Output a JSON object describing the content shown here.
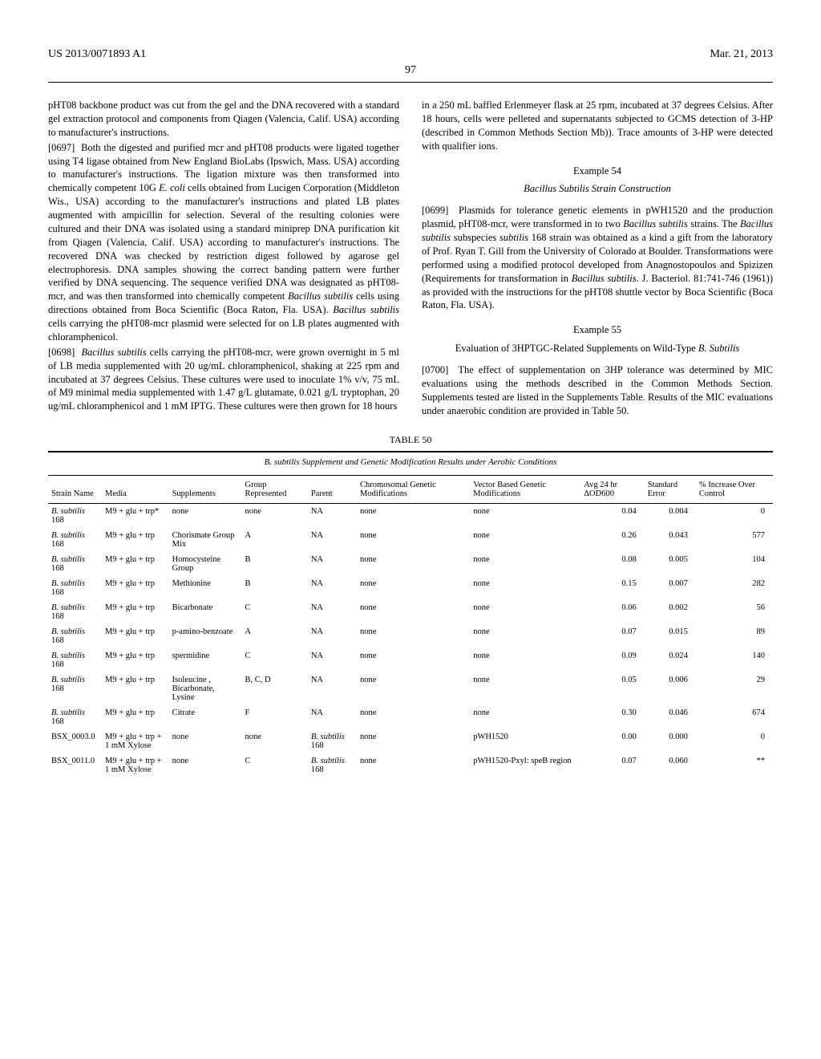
{
  "header": {
    "pub_number": "US 2013/0071893 A1",
    "pub_date": "Mar. 21, 2013",
    "page_number": "97"
  },
  "left_col": {
    "p1": "pHT08 backbone product was cut from the gel and the DNA recovered with a standard gel extraction protocol and components from Qiagen (Valencia, Calif. USA) according to manufacturer's instructions.",
    "p2_num": "[0697]",
    "p2": "Both the digested and purified mcr and pHT08 products were ligated together using T4 ligase obtained from New England BioLabs (Ipswich, Mass. USA) according to manufacturer's instructions. The ligation mixture was then transformed into chemically competent 10G E. coli cells obtained from Lucigen Corporation (Middleton Wis., USA) according to the manufacturer's instructions and plated LB plates augmented with ampicillin for selection. Several of the resulting colonies were cultured and their DNA was isolated using a standard miniprep DNA purification kit from Qiagen (Valencia, Calif. USA) according to manufacturer's instructions. The recovered DNA was checked by restriction digest followed by agarose gel electrophoresis. DNA samples showing the correct banding pattern were further verified by DNA sequencing. The sequence verified DNA was designated as pHT08-mcr, and was then transformed into chemically competent Bacillus subtilis cells using directions obtained from Boca Scientific (Boca Raton, Fla. USA). Bacillus subtilis cells carrying the pHT08-mcr plasmid were selected for on LB plates augmented with chloramphenicol.",
    "p3_num": "[0698]",
    "p3": "Bacillus subtilis cells carrying the pHT08-mcr, were grown overnight in 5 ml of LB media supplemented with 20 ug/mL chloramphenicol, shaking at 225 rpm and incubated at 37 degrees Celsius. These cultures were used to inoculate 1% v/v, 75 mL of M9 minimal media supplemented with 1.47 g/L glutamate, 0.021 g/L tryptophan, 20 ug/mL chloramphenicol and 1 mM IPTG. These cultures were then grown for 18 hours"
  },
  "right_col": {
    "p1": "in a 250 mL baffled Erlenmeyer flask at 25 rpm, incubated at 37 degrees Celsius. After 18 hours, cells were pelleted and supernatants subjected to GCMS detection of 3-HP (described in Common Methods Section Mb)). Trace amounts of 3-HP were detected with qualifier ions.",
    "ex54_label": "Example 54",
    "ex54_title": "Bacillus Subtilis Strain Construction",
    "p2_num": "[0699]",
    "p2": "Plasmids for tolerance genetic elements in pWH1520 and the production plasmid, pHT08-mcr, were transformed in to two Bacillus subtilis strains. The Bacillus subtilis subspecies subtilis 168 strain was obtained as a kind a gift from the laboratory of Prof. Ryan T. Gill from the University of Colorado at Boulder. Transformations were performed using a modified protocol developed from Anagnostopoulos and Spizizen (Requirements for transformation in Bacillus subtilis. J. Bacteriol. 81:741-746 (1961)) as provided with the instructions for the pHT08 shuttle vector by Boca Scientific (Boca Raton, Fla. USA).",
    "ex55_label": "Example 55",
    "ex55_title": "Evaluation of 3HPTGC-Related Supplements on Wild-Type B. Subtilis",
    "p3_num": "[0700]",
    "p3": "The effect of supplementation on 3HP tolerance was determined by MIC evaluations using the methods described in the Common Methods Section. Supplements tested are listed in the Supplements Table. Results of the MIC evaluations under anaerobic condition are provided in Table 50."
  },
  "table": {
    "caption": "TABLE 50",
    "title": "B. subtilis Supplement and Genetic Modification Results under Aerobic Conditions",
    "columns": [
      "Strain Name",
      "Media",
      "Supplements",
      "Group Represented",
      "Parent",
      "Chromosomal Genetic Modifications",
      "Vector Based Genetic Modifications",
      "Avg 24 hr ΔOD600",
      "Standard Error",
      "% Increase Over Control"
    ],
    "rows": [
      {
        "strain": "B. subtilis 168",
        "strain_italic": true,
        "media": "M9 + glu + trp*",
        "supp": "none",
        "group": "none",
        "parent": "NA",
        "chrom": "none",
        "vector": "none",
        "avg": "0.04",
        "se": "0.004",
        "pct": "0"
      },
      {
        "strain": "B. subtilis 168",
        "strain_italic": true,
        "media": "M9 + glu + trp",
        "supp": "Chorismate Group Mix",
        "group": "A",
        "parent": "NA",
        "chrom": "none",
        "vector": "none",
        "avg": "0.26",
        "se": "0.043",
        "pct": "577"
      },
      {
        "strain": "B. subtilis 168",
        "strain_italic": true,
        "media": "M9 + glu + trp",
        "supp": "Homocysteine Group",
        "group": "B",
        "parent": "NA",
        "chrom": "none",
        "vector": "none",
        "avg": "0.08",
        "se": "0.005",
        "pct": "104"
      },
      {
        "strain": "B. subtilis 168",
        "strain_italic": true,
        "media": "M9 + glu + trp",
        "supp": "Methionine",
        "group": "B",
        "parent": "NA",
        "chrom": "none",
        "vector": "none",
        "avg": "0.15",
        "se": "0.007",
        "pct": "282"
      },
      {
        "strain": "B. subtilis 168",
        "strain_italic": true,
        "media": "M9 + glu + trp",
        "supp": "Bicarbonate",
        "group": "C",
        "parent": "NA",
        "chrom": "none",
        "vector": "none",
        "avg": "0.06",
        "se": "0.002",
        "pct": "56"
      },
      {
        "strain": "B. subtilis 168",
        "strain_italic": true,
        "media": "M9 + glu + trp",
        "supp": "p-amino-benzoate",
        "group": "A",
        "parent": "NA",
        "chrom": "none",
        "vector": "none",
        "avg": "0.07",
        "se": "0.015",
        "pct": "89"
      },
      {
        "strain": "B. subtilis 168",
        "strain_italic": true,
        "media": "M9 + glu + trp",
        "supp": "spermidine",
        "group": "C",
        "parent": "NA",
        "chrom": "none",
        "vector": "none",
        "avg": "0.09",
        "se": "0.024",
        "pct": "140"
      },
      {
        "strain": "B. subtilis 168",
        "strain_italic": true,
        "media": "M9 + glu + trp",
        "supp": "Isoleucine , Bicarbonate, Lysine",
        "group": "B, C, D",
        "parent": "NA",
        "chrom": "none",
        "vector": "none",
        "avg": "0.05",
        "se": "0.006",
        "pct": "29"
      },
      {
        "strain": "B. subtilis 168",
        "strain_italic": true,
        "media": "M9 + glu + trp",
        "supp": "Citrate",
        "group": "F",
        "parent": "NA",
        "chrom": "none",
        "vector": "none",
        "avg": "0.30",
        "se": "0.046",
        "pct": "674"
      },
      {
        "strain": "BSX_0003.0",
        "strain_italic": false,
        "media": "M9 + glu + trp + 1 mM Xylose",
        "supp": "none",
        "group": "none",
        "parent": "B. subtilis 168",
        "parent_italic": true,
        "chrom": "none",
        "vector": "pWH1520",
        "avg": "0.00",
        "se": "0.000",
        "pct": "0"
      },
      {
        "strain": "BSX_0011.0",
        "strain_italic": false,
        "media": "M9 + glu + trp + 1 mM Xylose",
        "supp": "none",
        "group": "C",
        "parent": "B. subtilis 168",
        "parent_italic": true,
        "chrom": "none",
        "vector": "pWH1520-Pxyl: speB region",
        "avg": "0.07",
        "se": "0.060",
        "pct": "**"
      }
    ]
  }
}
